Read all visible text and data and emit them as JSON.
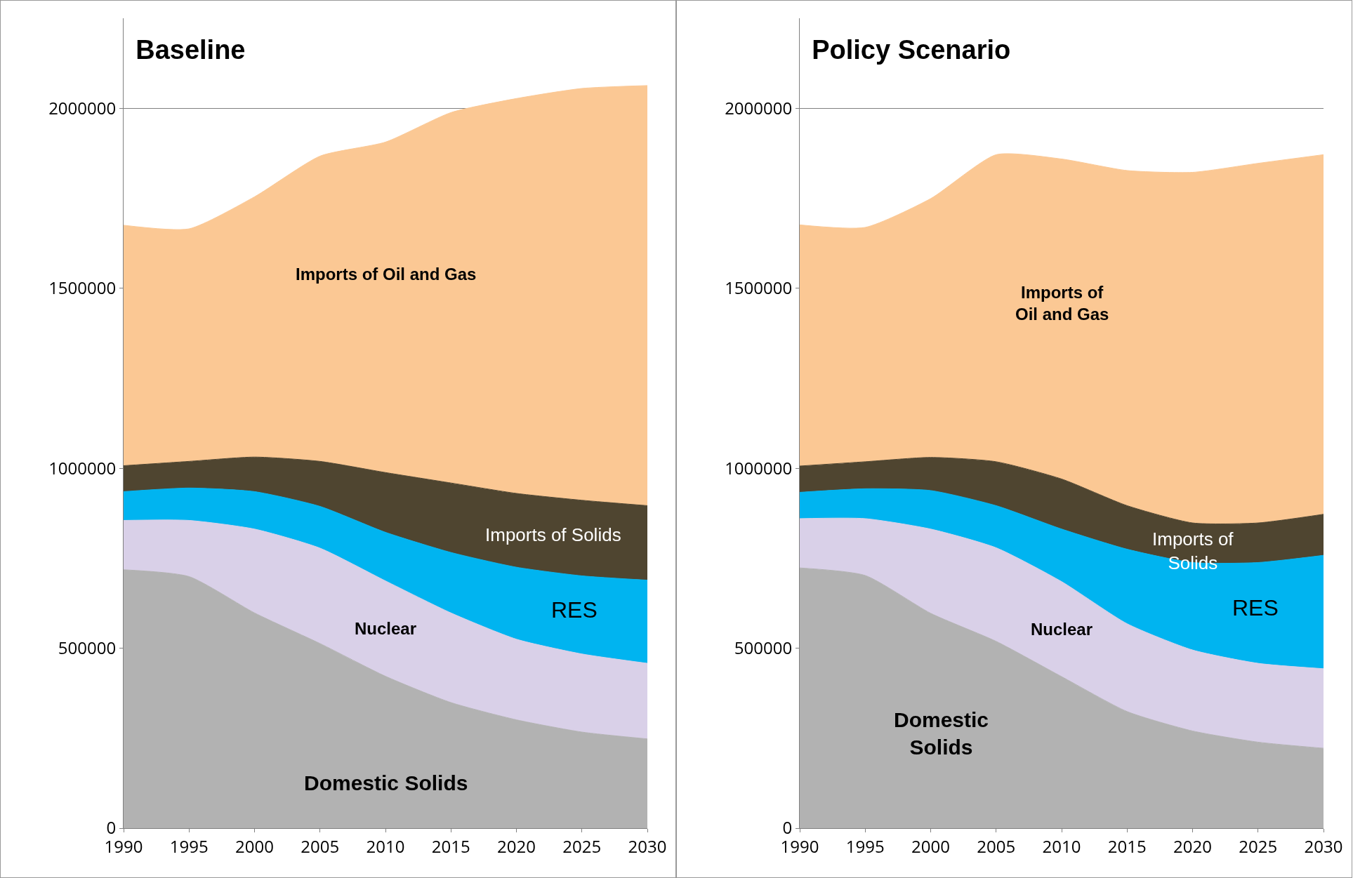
{
  "chart_data": [
    {
      "type": "area",
      "title": "Baseline",
      "stacked": true,
      "x": [
        1990,
        1995,
        2000,
        2005,
        2010,
        2015,
        2020,
        2025,
        2030
      ],
      "xlim": [
        1990,
        2030
      ],
      "xticks": [
        1990,
        1995,
        2000,
        2005,
        2010,
        2015,
        2020,
        2025,
        2030
      ],
      "ylim": [
        0,
        2250000
      ],
      "yticks": [
        0,
        500000,
        1000000,
        1500000,
        2000000
      ],
      "grid": "y",
      "legend": false,
      "series": [
        {
          "name": "Domestic Solids",
          "color": "#b2b2b2",
          "values": [
            718000,
            699000,
            598000,
            513000,
            422000,
            349000,
            301000,
            267000,
            248000
          ]
        },
        {
          "name": "Nuclear",
          "color": "#d9d0e8",
          "values": [
            137000,
            156000,
            233000,
            265000,
            265000,
            249000,
            224000,
            217000,
            210000
          ]
        },
        {
          "name": "RES",
          "color": "#00b4f0",
          "values": [
            80000,
            90000,
            104000,
            116000,
            135000,
            168000,
            200000,
            217000,
            231000
          ]
        },
        {
          "name": "Imports of Solids",
          "color": "#4f4530",
          "values": [
            72000,
            74000,
            96000,
            125000,
            166000,
            193000,
            205000,
            210000,
            207000
          ]
        },
        {
          "name": "Imports of Oil and Gas",
          "color": "#fbc894",
          "values": [
            668000,
            646000,
            723000,
            848000,
            918000,
            1029000,
            1097000,
            1144000,
            1167000
          ]
        }
      ]
    },
    {
      "type": "area",
      "title": "Policy Scenario",
      "stacked": true,
      "x": [
        1990,
        1995,
        2000,
        2005,
        2010,
        2015,
        2020,
        2025,
        2030
      ],
      "xlim": [
        1990,
        2030
      ],
      "xticks": [
        1990,
        1995,
        2000,
        2005,
        2010,
        2015,
        2020,
        2025,
        2030
      ],
      "ylim": [
        0,
        2250000
      ],
      "yticks": [
        0,
        500000,
        1000000,
        1500000,
        2000000
      ],
      "grid": "y",
      "legend": false,
      "series": [
        {
          "name": "Domestic\nSolids",
          "color": "#b2b2b2",
          "values": [
            723000,
            702000,
            597000,
            519000,
            421000,
            324000,
            270000,
            239000,
            222000
          ]
        },
        {
          "name": "Nuclear",
          "color": "#d9d0e8",
          "values": [
            137000,
            158000,
            234000,
            260000,
            264000,
            244000,
            225000,
            219000,
            221000
          ]
        },
        {
          "name": "RES",
          "color": "#00b4f0",
          "values": [
            73000,
            83000,
            107000,
            117000,
            146000,
            207000,
            243000,
            280000,
            315000
          ]
        },
        {
          "name": "Imports of\nSolids",
          "color": "#4f4530",
          "values": [
            73000,
            75000,
            92000,
            122000,
            139000,
            121000,
            110000,
            110000,
            114000
          ]
        },
        {
          "name": "Imports of\nOil and Gas",
          "color": "#fbc894",
          "values": [
            670000,
            651000,
            719000,
            853000,
            889000,
            931000,
            974000,
            999000,
            999000
          ]
        }
      ]
    }
  ]
}
